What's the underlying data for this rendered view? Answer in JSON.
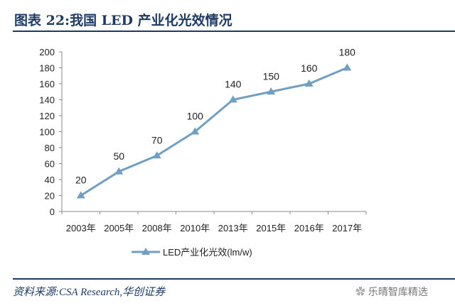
{
  "title": "图表 22:我国 LED 产业化光效情况",
  "source": "资料来源:CSA Research,华创证券",
  "watermark": "乐晴智库精选",
  "chart_data": {
    "type": "line",
    "categories": [
      "2003年",
      "2005年",
      "2008年",
      "2010年",
      "2013年",
      "2015年",
      "2016年",
      "2017年"
    ],
    "series": [
      {
        "name": "LED产业化光效(lm/w)",
        "values": [
          20,
          50,
          70,
          100,
          140,
          150,
          160,
          180
        ],
        "color": "#6f9fc2",
        "marker": "triangle"
      }
    ],
    "ylim": [
      0,
      200
    ],
    "yticks": [
      0,
      20,
      40,
      60,
      80,
      100,
      120,
      140,
      160,
      180,
      200
    ],
    "data_labels": true,
    "grid": false,
    "legend": "bottom"
  }
}
